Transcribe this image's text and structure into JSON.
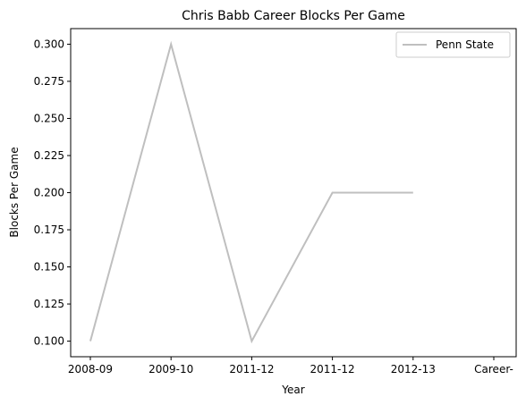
{
  "chart_data": {
    "type": "line",
    "title": "Chris Babb Career Blocks Per Game",
    "xlabel": "Year",
    "ylabel": "Blocks Per Game",
    "ylim": [
      0.0895,
      0.3105
    ],
    "yticks": [
      "0.100",
      "0.125",
      "0.150",
      "0.175",
      "0.200",
      "0.225",
      "0.250",
      "0.275",
      "0.300"
    ],
    "x_tick_labels": [
      "2008-09",
      "2009-10",
      "2011-12",
      "2011-12",
      "2012-13",
      "Career-"
    ],
    "grid": false,
    "legend_position": "top-right",
    "series": [
      {
        "name": "Penn State",
        "color": "#bfbfbf",
        "x_positions": [
          0,
          1,
          2,
          3,
          4
        ],
        "values": [
          0.1,
          0.3,
          0.1,
          0.2,
          0.2
        ]
      }
    ]
  }
}
